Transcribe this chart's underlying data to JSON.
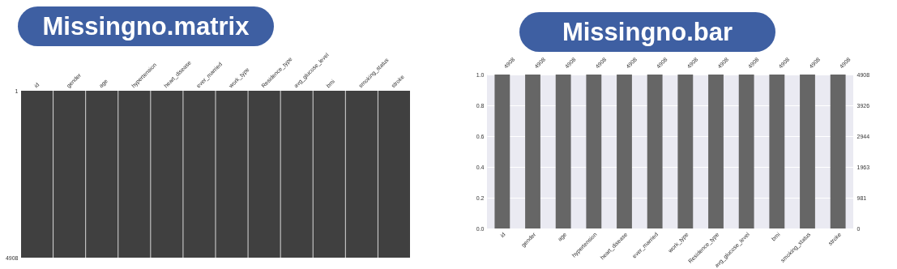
{
  "chart_data": [
    {
      "type": "bar",
      "title": "Missingno.matrix",
      "categories": [
        "id",
        "gender",
        "age",
        "hypertension",
        "heart_disease",
        "ever_married",
        "work_type",
        "Residence_type",
        "avg_glucose_level",
        "bmi",
        "smoking_status",
        "stroke"
      ],
      "values": [
        4908,
        4908,
        4908,
        4908,
        4908,
        4908,
        4908,
        4908,
        4908,
        4908,
        4908,
        4908
      ],
      "color": "#404040",
      "ylim": [
        4908,
        0
      ],
      "yticks": [
        1,
        4908
      ]
    },
    {
      "type": "bar",
      "title": "Missingno.bar",
      "categories": [
        "id",
        "gender",
        "age",
        "hypertension",
        "heart_disease",
        "ever_married",
        "work_type",
        "Residence_type",
        "avg_glucose_level",
        "bmi",
        "smoking_status",
        "stroke"
      ],
      "series": [
        {
          "axis": "y2",
          "color": "#666666",
          "values": [
            4908,
            4908,
            4908,
            4908,
            4908,
            4908,
            4908,
            4908,
            4908,
            4908,
            4908,
            4908
          ]
        }
      ],
      "data_labels": true,
      "ylim": [
        0,
        1
      ],
      "yticks": [
        {
          "value": 0,
          "label": "0.0"
        },
        {
          "value": 0.2,
          "label": "0.2"
        },
        {
          "value": 0.4,
          "label": "0.4"
        },
        {
          "value": 0.6,
          "label": "0.6"
        },
        {
          "value": 0.8,
          "label": "0.8"
        },
        {
          "value": 1,
          "label": "1.0"
        }
      ],
      "y2lim": [
        0,
        4908
      ],
      "y2ticks": [
        0,
        981,
        1963,
        2944,
        3926,
        4908
      ],
      "grid": "y"
    }
  ]
}
